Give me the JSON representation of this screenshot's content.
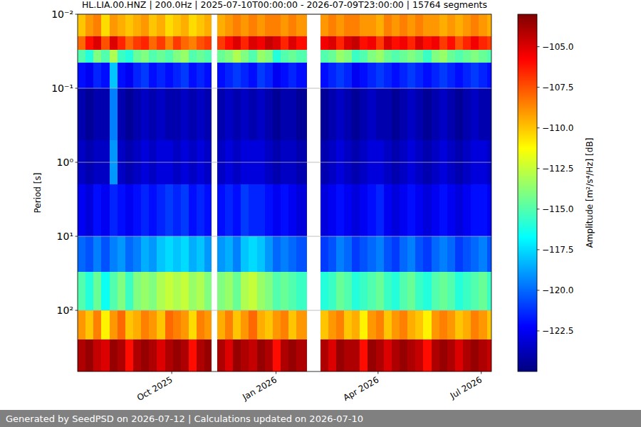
{
  "chart_data": {
    "type": "heatmap",
    "title": "HL.LIA.00.HNZ | 200.0Hz | 2025-07-10T00:00:00 - 2026-07-09T23:00:00 | 15764 segments",
    "footer": "Generated by SeedPSD on 2026-07-12 | Calculations updated on 2026-07-10",
    "ylabel": "Period [s]",
    "log": "y",
    "grid": true,
    "xlim": [
      "2025-07-10",
      "2026-07-10"
    ],
    "ylim": [
      0.01,
      670
    ],
    "xticks": [
      {
        "value": "2025-10-01",
        "label": "Oct 2025"
      },
      {
        "value": "2026-01-01",
        "label": "Jan 2026"
      },
      {
        "value": "2026-04-01",
        "label": "Apr 2026"
      },
      {
        "value": "2026-07-01",
        "label": "Jul 2026"
      }
    ],
    "yticks": [
      {
        "value": 0.01,
        "label": "10⁻²"
      },
      {
        "value": 0.1,
        "label": "10⁻¹"
      },
      {
        "value": 1,
        "label": "10⁰"
      },
      {
        "value": 10,
        "label": "10¹"
      },
      {
        "value": 100,
        "label": "10²"
      }
    ],
    "colorbar": {
      "label": "Amplitude [m²/s⁴/Hz] [dB]",
      "range": [
        -125,
        -103
      ],
      "ticks": [
        {
          "value": -105,
          "label": "−105.0"
        },
        {
          "value": -107.5,
          "label": "−107.5"
        },
        {
          "value": -110,
          "label": "−110.0"
        },
        {
          "value": -112.5,
          "label": "−112.5"
        },
        {
          "value": -115,
          "label": "−115.0"
        },
        {
          "value": -117.5,
          "label": "−117.5"
        },
        {
          "value": -120,
          "label": "−120.0"
        },
        {
          "value": -122.5,
          "label": "−122.5"
        }
      ]
    },
    "x_bins": [
      "2025-07-10",
      "2025-07-17",
      "2025-07-24",
      "2025-07-31",
      "2025-08-07",
      "2025-08-14",
      "2025-08-21",
      "2025-08-28",
      "2025-09-04",
      "2025-09-11",
      "2025-09-18",
      "2025-09-25",
      "2025-10-02",
      "2025-10-09",
      "2025-10-16",
      "2025-10-23",
      "2025-10-30",
      "2025-11-05",
      "2025-11-10",
      "2025-11-17",
      "2025-11-24",
      "2025-12-01",
      "2025-12-08",
      "2025-12-15",
      "2025-12-22",
      "2025-12-29",
      "2026-01-05",
      "2026-01-12",
      "2026-01-19",
      "2026-01-28",
      "2026-02-09",
      "2026-02-16",
      "2026-02-23",
      "2026-03-02",
      "2026-03-09",
      "2026-03-16",
      "2026-03-23",
      "2026-03-30",
      "2026-04-06",
      "2026-04-13",
      "2026-04-20",
      "2026-04-27",
      "2026-05-04",
      "2026-05-11",
      "2026-05-18",
      "2026-05-25",
      "2026-06-01",
      "2026-06-08",
      "2026-06-15",
      "2026-06-22",
      "2026-06-29",
      "2026-07-06",
      "2026-07-10"
    ],
    "y_bins": [
      0.01,
      0.02,
      0.03,
      0.045,
      0.1,
      0.5,
      2,
      10,
      30,
      100,
      250,
      670
    ],
    "values": [
      [
        -110,
        -109,
        -108.5,
        -110.5,
        -109,
        -109.5,
        -110,
        -109.5,
        -109,
        -110,
        -109.5,
        -110.5,
        -110,
        -109.5,
        -110.5,
        -110,
        -109.5,
        null,
        -109.5,
        -109,
        -108.5,
        -109,
        -108.5,
        -109,
        -108.5,
        -108.5,
        -109,
        -108.5,
        -109,
        null,
        -109,
        -108.5,
        -109,
        -108.5,
        -108.5,
        -109,
        -109,
        -109.5,
        -108.5,
        -109,
        -108.5,
        -109,
        -108.5,
        -109,
        -109,
        -109.5,
        -109,
        -109.5,
        -109,
        -108.5,
        -109,
        -109.5
      ],
      [
        -108,
        -106,
        -105,
        -107.5,
        -105,
        -106.5,
        -108,
        -107,
        -106.5,
        -108,
        -107,
        -108.5,
        -107,
        -108,
        -108.5,
        -107.5,
        -107,
        null,
        -107,
        -106,
        -105,
        -106.5,
        -105,
        -105.5,
        -104.5,
        -105,
        -106.5,
        -105,
        -106,
        null,
        -105.5,
        -105,
        -106.5,
        -105,
        -104.5,
        -106,
        -105.5,
        -107,
        -105,
        -106,
        -105.5,
        -106.5,
        -105,
        -106,
        -105.5,
        -107,
        -106,
        -107.5,
        -106.5,
        -105.5,
        -106.5,
        -107
      ],
      [
        -115,
        -116,
        -114,
        -115,
        -113,
        -115.5,
        -116,
        -114.5,
        -114,
        -115,
        -114.5,
        -115,
        -114,
        -113.5,
        -115,
        -114.5,
        -115,
        null,
        -114.5,
        -114,
        -113,
        -114,
        -115,
        -113.5,
        -114,
        -116,
        -115,
        -114.5,
        -115,
        null,
        -115,
        -114.5,
        -113.5,
        -114,
        -115.5,
        -115,
        -114,
        -113.5,
        -114.5,
        -115,
        -114.5,
        -114,
        -114.5,
        -115.5,
        -114,
        -113.5,
        -114.5,
        -115,
        -114.5,
        -114,
        -114.5,
        -115
      ],
      [
        -122,
        -122.5,
        -121.5,
        -122,
        -118,
        -122,
        -122.5,
        -121.5,
        -121,
        -122,
        -121.5,
        -122,
        -121.5,
        -121,
        -122,
        -121.5,
        -122,
        null,
        -122,
        -121.5,
        -121,
        -121.5,
        -122,
        -121,
        -121.5,
        -122.5,
        -122,
        -121.5,
        -122,
        null,
        -122,
        -121.5,
        -121,
        -121.5,
        -122.5,
        -122,
        -121.5,
        -121,
        -121.5,
        -122,
        -121.5,
        -121,
        -121.5,
        -122,
        -121.5,
        -121,
        -121.5,
        -122,
        -121.5,
        -121,
        -121.5,
        -122
      ],
      [
        -124,
        -124.5,
        -124,
        -124,
        -119.5,
        -124,
        -124.5,
        -124,
        -123.5,
        -124,
        -123.5,
        -124,
        -124,
        -123.5,
        -124,
        -123.5,
        -124,
        null,
        -124,
        -123.5,
        -124,
        -123.5,
        -124,
        -123.5,
        -124,
        -124.5,
        -124,
        -124,
        -124.5,
        null,
        -124.5,
        -124,
        -123.5,
        -124,
        -124.5,
        -124,
        -123.5,
        -124,
        -124,
        -124.5,
        -124,
        -123.5,
        -124,
        -124.5,
        -124,
        -123.5,
        -124,
        -124.5,
        -124,
        -123.5,
        -124,
        -124
      ],
      [
        -123.5,
        -124,
        -123.5,
        -123.5,
        -119,
        -123.5,
        -124,
        -123.5,
        -123,
        -123.5,
        -123,
        -123,
        -123.5,
        -123,
        -123.5,
        -123,
        -123.5,
        null,
        -123.5,
        -123,
        -123.5,
        -123,
        -123,
        -123,
        -123.5,
        -124,
        -123.5,
        -123.5,
        -124,
        null,
        -124,
        -123.5,
        -123,
        -123.5,
        -124,
        -123.5,
        -123,
        -123,
        -123.5,
        -124,
        -123.5,
        -123,
        -123.5,
        -124,
        -123.5,
        -123,
        -123.5,
        -124,
        -123.5,
        -123,
        -123,
        -123.5
      ],
      [
        -122.5,
        -123,
        -122,
        -122.5,
        -121.5,
        -122,
        -122.5,
        -122,
        -121.5,
        -122,
        -121.5,
        -121,
        -121.5,
        -121,
        -122,
        -121.5,
        -122,
        null,
        -122,
        -121.5,
        -122,
        -121,
        -121.5,
        -121.5,
        -122,
        -122.5,
        -122,
        -122.5,
        -123,
        null,
        -123,
        -122.5,
        -122,
        -122.5,
        -123,
        -122.5,
        -122,
        -121.5,
        -122.5,
        -123,
        -122.5,
        -122,
        -122.5,
        -123,
        -122.5,
        -122,
        -122.5,
        -123,
        -122.5,
        -122,
        -122,
        -122.5
      ],
      [
        -120,
        -120.5,
        -119.5,
        -120.5,
        -119.5,
        -119,
        -120,
        -119.5,
        -118.5,
        -119,
        -118,
        -117.5,
        -118,
        -117.5,
        -118.5,
        -118,
        -119,
        null,
        -119,
        -118.5,
        -119.5,
        -118,
        -117.5,
        -118,
        -119,
        -120,
        -119.5,
        -120,
        -120.5,
        null,
        -121,
        -120.5,
        -119.5,
        -120,
        -121,
        -120.5,
        -120,
        -119.5,
        -120.5,
        -121,
        -120,
        -119.5,
        -120.5,
        -121,
        -120,
        -119.5,
        -120,
        -121,
        -120.5,
        -120,
        -119.5,
        -120.5
      ],
      [
        -115,
        -116,
        -114.5,
        -116.5,
        -115,
        -114,
        -115.5,
        -114,
        -113.5,
        -114,
        -113,
        -112.5,
        -113,
        -112.5,
        -113.5,
        -113,
        -114,
        null,
        -114,
        -113.5,
        -114.5,
        -113,
        -112.5,
        -113.5,
        -114,
        -115,
        -114.5,
        -115,
        -115.5,
        null,
        -116,
        -115.5,
        -114.5,
        -115,
        -116,
        -115.5,
        -115,
        -114.5,
        -115.5,
        -116,
        -115,
        -114.5,
        -115.5,
        -116,
        -115,
        -114.5,
        -115,
        -116,
        -115.5,
        -115,
        -114.5,
        -115.5
      ],
      [
        -109,
        -110,
        -108.5,
        -111,
        -109,
        -108,
        -110,
        -109.5,
        -108.5,
        -109,
        -110,
        -108,
        -108.5,
        -109,
        -110.5,
        -108.5,
        -109,
        null,
        -109.5,
        -108.5,
        -110,
        -109,
        -108,
        -109.5,
        -110,
        -109,
        -108.5,
        -110,
        -109,
        null,
        -110,
        -109,
        -108.5,
        -110,
        -109.5,
        -111,
        -109,
        -108.5,
        -110,
        -109,
        -108.5,
        -109.5,
        -110,
        -111,
        -109,
        -108.5,
        -109,
        -110,
        -109.5,
        -108.5,
        -109,
        -110
      ],
      [
        -104,
        -103.5,
        -104.5,
        -105,
        -103.5,
        -104,
        -106,
        -104,
        -103.5,
        -104,
        -105,
        -104,
        -103.5,
        -104,
        -106,
        -104,
        -103.5,
        null,
        -104,
        -105,
        -103.5,
        -104,
        -104.5,
        -103.5,
        -104,
        -106,
        -104,
        -103.5,
        -104,
        null,
        -104,
        -105,
        -103.5,
        -104,
        -104,
        -106,
        -103.5,
        -104,
        -105,
        -104,
        -103.5,
        -104,
        -104.5,
        -106,
        -104,
        -103.5,
        -104,
        -105,
        -104,
        -103.5,
        -104,
        -104.5
      ]
    ]
  }
}
